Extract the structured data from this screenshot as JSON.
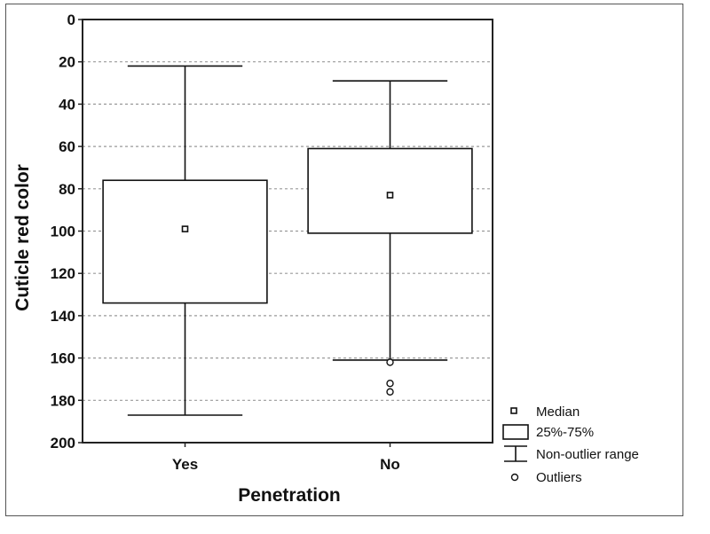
{
  "chart_data": {
    "type": "boxplot",
    "xlabel": "Penetration",
    "ylabel": "Cuticle red color",
    "ylim": [
      0,
      200
    ],
    "y_reversed": true,
    "yticks": [
      0,
      20,
      40,
      60,
      80,
      100,
      120,
      140,
      160,
      180,
      200
    ],
    "categories": [
      "Yes",
      "No"
    ],
    "boxes": [
      {
        "category": "Yes",
        "median": 99,
        "q1": 76,
        "q3": 134,
        "whisker_low": 22,
        "whisker_high": 187,
        "outliers": []
      },
      {
        "category": "No",
        "median": 83,
        "q1": 61,
        "q3": 101,
        "whisker_low": 29,
        "whisker_high": 161,
        "outliers": [
          162,
          172,
          176
        ]
      }
    ],
    "grid": "horizontal-dashed",
    "legend": {
      "placement": "bottom-right",
      "items": [
        {
          "symbol": "square",
          "label": "Median"
        },
        {
          "symbol": "box",
          "label": "25%-75%"
        },
        {
          "symbol": "whisker",
          "label": "Non-outlier range"
        },
        {
          "symbol": "circle",
          "label": "Outliers"
        }
      ]
    }
  }
}
